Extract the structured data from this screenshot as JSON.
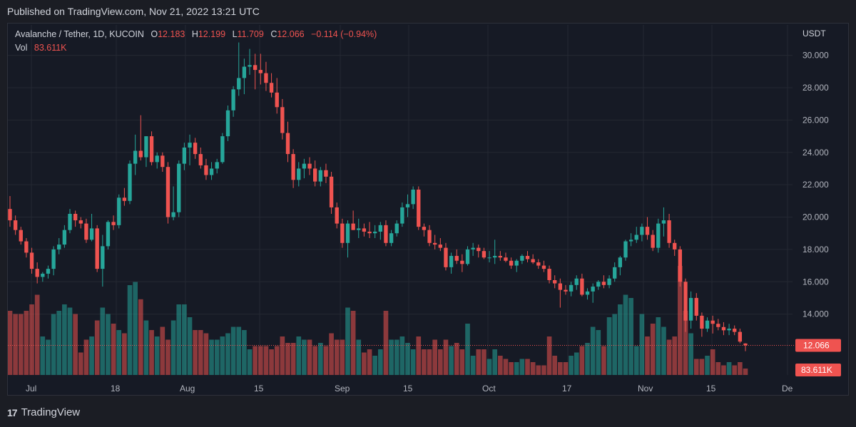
{
  "header": {
    "published": "Published on TradingView.com, Nov 21, 2022 13:21 UTC"
  },
  "legend": {
    "symbol": "Avalanche / Tether, 1D, KUCOIN",
    "o_label": "O",
    "o_value": "12.183",
    "h_label": "H",
    "h_value": "12.199",
    "l_label": "L",
    "l_value": "11.709",
    "c_label": "C",
    "c_value": "12.066",
    "change": "−0.114 (−0.94%)",
    "vol_label": "Vol",
    "vol_value": "83.611K"
  },
  "price_axis": {
    "unit": "USDT",
    "last_price": "12.066",
    "last_volume": "83.611K"
  },
  "footer": {
    "brand": "TradingView",
    "logo": "17"
  },
  "colors": {
    "up": "#26a69a",
    "down": "#ef5350",
    "grid": "#242832",
    "text": "#b2b5be"
  },
  "chart_data": {
    "type": "candlestick",
    "symbol": "AVAX/USDT",
    "interval": "1D",
    "yaxis": {
      "ticks": [
        "14.000",
        "16.000",
        "18.000",
        "20.000",
        "22.000",
        "24.000",
        "26.000",
        "28.000",
        "30.000"
      ],
      "ylim": [
        12.0,
        31.0
      ]
    },
    "xaxis": {
      "ticks": [
        "Jul",
        "18",
        "Aug",
        "15",
        "Sep",
        "15",
        "Oct",
        "17",
        "Nov",
        "15",
        "De"
      ]
    },
    "grid": true,
    "candles": [
      [
        20.5,
        21.3,
        19.4,
        19.8,
        1.0
      ],
      [
        19.8,
        20.1,
        18.9,
        19.2,
        0.95
      ],
      [
        19.2,
        19.4,
        18.3,
        18.5,
        0.95
      ],
      [
        18.5,
        18.7,
        17.5,
        17.8,
        1.0
      ],
      [
        17.8,
        18.1,
        16.5,
        16.8,
        1.1
      ],
      [
        16.8,
        17.2,
        15.9,
        16.3,
        1.25
      ],
      [
        16.3,
        16.6,
        16.0,
        16.5,
        0.6
      ],
      [
        16.5,
        17.0,
        16.2,
        16.8,
        0.55
      ],
      [
        16.8,
        18.2,
        16.4,
        18.0,
        0.95
      ],
      [
        18.0,
        18.7,
        17.7,
        18.3,
        1.0
      ],
      [
        18.3,
        19.5,
        18.1,
        19.2,
        1.1
      ],
      [
        19.2,
        20.5,
        19.0,
        20.2,
        1.05
      ],
      [
        20.2,
        20.4,
        19.4,
        19.8,
        0.95
      ],
      [
        19.8,
        20.0,
        19.3,
        19.6,
        0.35
      ],
      [
        19.6,
        19.9,
        18.4,
        18.6,
        0.55
      ],
      [
        18.6,
        20.2,
        18.5,
        19.3,
        0.6
      ],
      [
        19.3,
        19.5,
        16.6,
        16.8,
        0.85
      ],
      [
        16.8,
        18.9,
        15.7,
        18.2,
        1.05
      ],
      [
        18.2,
        19.8,
        18.0,
        19.7,
        0.95
      ],
      [
        19.7,
        20.1,
        19.2,
        19.5,
        0.8
      ],
      [
        19.5,
        21.4,
        19.3,
        21.2,
        0.7
      ],
      [
        21.2,
        21.8,
        20.7,
        21.0,
        0.65
      ],
      [
        21.0,
        23.5,
        20.8,
        23.3,
        1.4
      ],
      [
        23.3,
        25.1,
        22.6,
        24.1,
        1.45
      ],
      [
        24.1,
        26.3,
        23.5,
        23.7,
        1.18
      ],
      [
        23.7,
        25.0,
        23.1,
        25.0,
        0.85
      ],
      [
        25.0,
        25.3,
        23.2,
        23.4,
        0.7
      ],
      [
        23.4,
        24.0,
        23.0,
        23.8,
        0.6
      ],
      [
        23.8,
        24.0,
        22.8,
        23.1,
        0.75
      ],
      [
        23.1,
        23.4,
        19.6,
        20.0,
        0.55
      ],
      [
        20.0,
        21.9,
        19.8,
        20.3,
        0.85
      ],
      [
        20.3,
        23.5,
        20.0,
        23.3,
        1.1
      ],
      [
        23.3,
        24.6,
        22.9,
        24.3,
        1.1
      ],
      [
        24.3,
        25.1,
        23.2,
        24.6,
        0.9
      ],
      [
        24.6,
        24.9,
        23.6,
        23.9,
        0.7
      ],
      [
        23.9,
        24.3,
        23.0,
        23.2,
        0.7
      ],
      [
        23.2,
        23.6,
        22.3,
        22.6,
        0.65
      ],
      [
        22.6,
        23.4,
        22.3,
        23.0,
        0.55
      ],
      [
        23.0,
        23.6,
        22.7,
        23.4,
        0.55
      ],
      [
        23.4,
        25.2,
        23.3,
        25.0,
        0.6
      ],
      [
        25.0,
        26.9,
        24.7,
        26.6,
        0.65
      ],
      [
        26.6,
        28.1,
        26.2,
        27.9,
        0.75
      ],
      [
        27.9,
        30.8,
        27.5,
        28.6,
        0.75
      ],
      [
        28.6,
        29.8,
        27.6,
        29.3,
        0.7
      ],
      [
        29.3,
        30.4,
        28.8,
        29.4,
        0.4
      ],
      [
        29.4,
        30.1,
        27.9,
        29.1,
        0.45
      ],
      [
        29.1,
        30.1,
        28.2,
        28.9,
        0.45
      ],
      [
        28.9,
        29.6,
        27.8,
        28.3,
        0.45
      ],
      [
        28.3,
        28.9,
        27.4,
        27.7,
        0.4
      ],
      [
        27.7,
        28.6,
        26.4,
        26.8,
        0.45
      ],
      [
        26.8,
        27.3,
        24.8,
        25.2,
        0.6
      ],
      [
        25.2,
        25.9,
        23.4,
        23.9,
        0.5
      ],
      [
        23.9,
        24.2,
        21.8,
        22.3,
        0.5
      ],
      [
        22.3,
        23.4,
        21.9,
        23.0,
        0.6
      ],
      [
        23.0,
        23.6,
        22.4,
        23.3,
        0.55
      ],
      [
        23.3,
        23.7,
        22.6,
        23.0,
        0.55
      ],
      [
        23.0,
        23.5,
        21.9,
        22.2,
        0.45
      ],
      [
        22.2,
        23.1,
        21.9,
        22.9,
        0.5
      ],
      [
        22.9,
        23.3,
        22.1,
        22.5,
        0.45
      ],
      [
        22.5,
        22.8,
        20.2,
        20.6,
        0.65
      ],
      [
        20.6,
        20.9,
        19.3,
        19.6,
        0.55
      ],
      [
        19.6,
        19.9,
        18.1,
        18.4,
        0.55
      ],
      [
        18.4,
        19.8,
        17.5,
        19.6,
        1.05
      ],
      [
        19.6,
        20.4,
        19.2,
        19.2,
        1.0
      ],
      [
        19.2,
        19.9,
        18.7,
        19.3,
        0.55
      ],
      [
        19.3,
        19.6,
        18.8,
        19.1,
        0.35
      ],
      [
        19.1,
        19.7,
        18.7,
        19.0,
        0.4
      ],
      [
        19.0,
        19.5,
        18.7,
        19.1,
        0.3
      ],
      [
        19.1,
        19.7,
        18.6,
        19.5,
        0.4
      ],
      [
        19.5,
        19.8,
        18.2,
        18.4,
        1.0
      ],
      [
        18.4,
        19.2,
        18.2,
        19.0,
        0.55
      ],
      [
        19.0,
        19.8,
        18.8,
        19.6,
        0.55
      ],
      [
        19.6,
        20.9,
        19.4,
        20.6,
        0.6
      ],
      [
        20.6,
        21.4,
        20.0,
        20.8,
        0.5
      ],
      [
        20.8,
        21.9,
        20.5,
        21.7,
        0.4
      ],
      [
        21.7,
        21.9,
        19.2,
        19.4,
        0.6
      ],
      [
        19.4,
        19.6,
        18.8,
        19.2,
        0.4
      ],
      [
        19.2,
        19.5,
        18.2,
        18.4,
        0.4
      ],
      [
        18.4,
        18.9,
        18.0,
        18.3,
        0.55
      ],
      [
        18.3,
        18.7,
        17.9,
        18.1,
        0.4
      ],
      [
        18.1,
        18.4,
        16.7,
        16.9,
        0.55
      ],
      [
        16.9,
        17.8,
        16.5,
        17.6,
        0.45
      ],
      [
        17.6,
        18.0,
        17.1,
        17.3,
        0.5
      ],
      [
        17.3,
        17.7,
        16.6,
        17.1,
        0.4
      ],
      [
        17.1,
        18.2,
        17.0,
        18.0,
        0.8
      ],
      [
        18.0,
        18.4,
        17.6,
        18.1,
        0.3
      ],
      [
        18.1,
        18.3,
        17.5,
        17.9,
        0.4
      ],
      [
        17.9,
        18.1,
        17.4,
        17.5,
        0.4
      ],
      [
        17.5,
        17.9,
        17.2,
        17.5,
        0.25
      ],
      [
        17.5,
        18.6,
        17.1,
        17.6,
        0.4
      ],
      [
        17.6,
        17.9,
        17.3,
        17.5,
        0.3
      ],
      [
        17.5,
        17.8,
        17.2,
        17.3,
        0.25
      ],
      [
        17.3,
        17.5,
        16.8,
        17.0,
        0.2
      ],
      [
        17.0,
        17.4,
        16.6,
        17.3,
        0.2
      ],
      [
        17.3,
        17.7,
        17.1,
        17.6,
        0.25
      ],
      [
        17.6,
        17.9,
        17.2,
        17.4,
        0.25
      ],
      [
        17.4,
        17.7,
        17.1,
        17.2,
        0.2
      ],
      [
        17.2,
        17.4,
        16.8,
        17.0,
        0.15
      ],
      [
        17.0,
        17.3,
        16.6,
        16.8,
        0.15
      ],
      [
        16.8,
        17.0,
        15.9,
        16.1,
        0.6
      ],
      [
        16.1,
        16.4,
        15.6,
        15.9,
        0.3
      ],
      [
        15.9,
        16.2,
        14.4,
        15.5,
        0.2
      ],
      [
        15.5,
        15.8,
        15.2,
        15.4,
        0.2
      ],
      [
        15.4,
        16.0,
        15.1,
        15.8,
        0.3
      ],
      [
        15.8,
        16.4,
        15.5,
        16.2,
        0.35
      ],
      [
        16.2,
        16.5,
        15.1,
        15.2,
        0.45
      ],
      [
        15.2,
        15.6,
        14.9,
        15.4,
        0.5
      ],
      [
        15.4,
        15.9,
        14.7,
        15.7,
        0.75
      ],
      [
        15.7,
        16.1,
        15.5,
        16.0,
        0.7
      ],
      [
        16.0,
        16.4,
        15.6,
        15.8,
        0.45
      ],
      [
        15.8,
        16.4,
        15.6,
        16.2,
        0.9
      ],
      [
        16.2,
        17.2,
        16.0,
        16.9,
        0.95
      ],
      [
        16.9,
        17.6,
        16.4,
        17.5,
        1.1
      ],
      [
        17.5,
        18.6,
        17.3,
        18.5,
        1.25
      ],
      [
        18.5,
        19.0,
        18.2,
        18.6,
        1.2
      ],
      [
        18.6,
        19.4,
        18.4,
        18.9,
        0.45
      ],
      [
        18.9,
        19.6,
        18.5,
        19.4,
        0.95
      ],
      [
        19.4,
        20.0,
        18.6,
        18.9,
        0.6
      ],
      [
        18.9,
        19.2,
        17.9,
        18.1,
        0.8
      ],
      [
        18.1,
        19.9,
        17.8,
        19.6,
        0.9
      ],
      [
        19.6,
        20.6,
        18.8,
        19.8,
        0.75
      ],
      [
        19.8,
        20.2,
        18.1,
        18.4,
        0.55
      ],
      [
        18.4,
        18.6,
        17.6,
        18.0,
        0.6
      ],
      [
        18.0,
        18.2,
        15.7,
        16.0,
        1.7
      ],
      [
        16.0,
        16.2,
        12.9,
        13.6,
        1.0
      ],
      [
        13.6,
        15.4,
        13.1,
        15.0,
        0.65
      ],
      [
        15.0,
        15.3,
        13.6,
        13.9,
        0.25
      ],
      [
        13.9,
        14.1,
        12.6,
        13.1,
        0.25
      ],
      [
        13.1,
        13.8,
        12.9,
        13.6,
        0.3
      ],
      [
        13.6,
        13.9,
        12.8,
        13.4,
        0.4
      ],
      [
        13.4,
        13.7,
        13.0,
        13.2,
        0.2
      ],
      [
        13.2,
        13.5,
        12.7,
        13.0,
        0.15
      ],
      [
        13.0,
        13.4,
        12.7,
        13.1,
        0.2
      ],
      [
        13.1,
        13.3,
        12.7,
        12.9,
        0.15
      ],
      [
        12.9,
        13.1,
        12.2,
        12.3,
        0.2
      ],
      [
        12.183,
        12.199,
        11.709,
        12.066,
        0.1
      ]
    ]
  }
}
